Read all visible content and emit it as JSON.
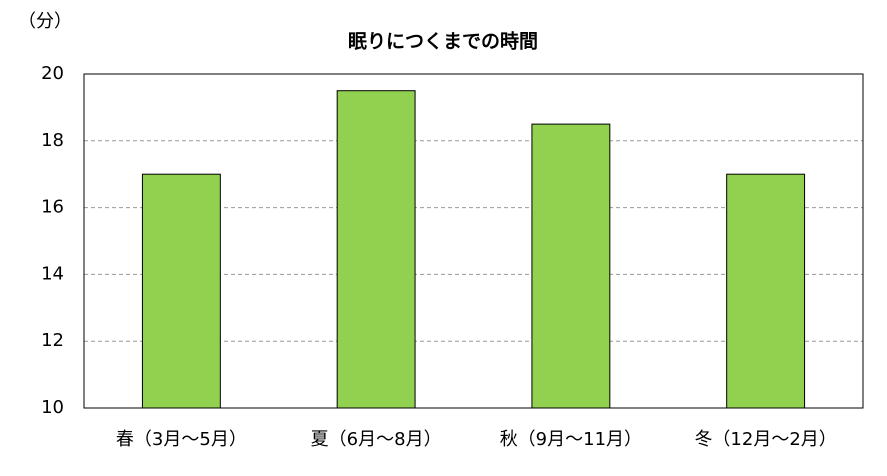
{
  "chart_data": {
    "type": "bar",
    "title": "眠りにつくまでの時間",
    "y_label": "（分）",
    "categories": [
      "春（3月～5月）",
      "夏（6月～8月）",
      "秋（9月～11月）",
      "冬（12月～2月）"
    ],
    "values": [
      17,
      19.5,
      18.5,
      17
    ],
    "color": "#92d050",
    "ylim": [
      10,
      20
    ],
    "yticks": [
      10,
      12,
      14,
      16,
      18,
      20
    ],
    "grid": true
  }
}
